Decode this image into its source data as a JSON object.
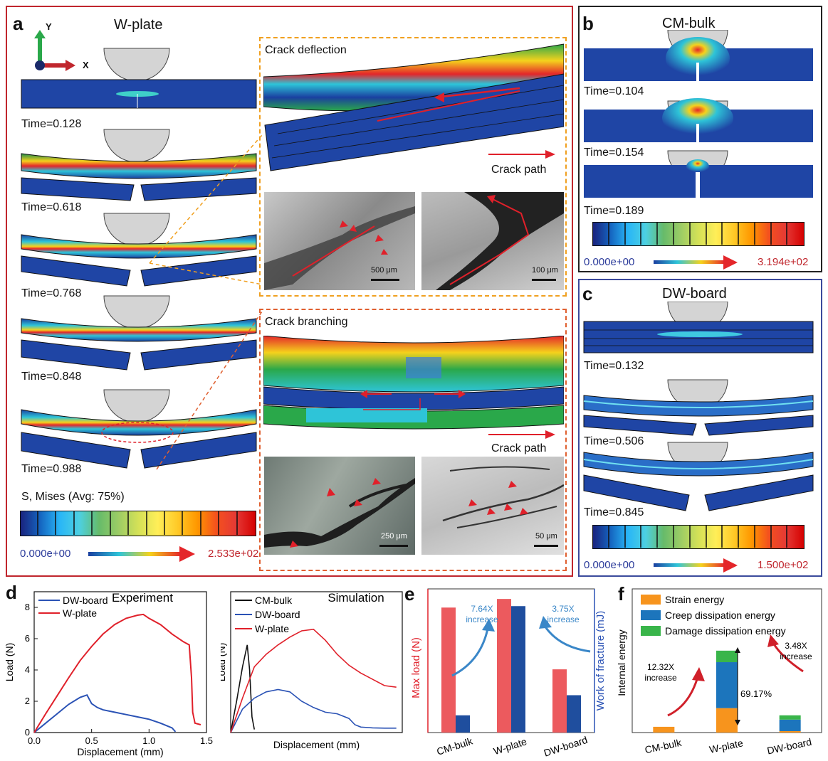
{
  "panel_a": {
    "letter": "a",
    "title": "W-plate",
    "axis_y": "Y",
    "axis_x": "X",
    "times": [
      "Time=0.128",
      "Time=0.618",
      "Time=0.768",
      "Time=0.848",
      "Time=0.988"
    ],
    "legend_title": "S, Mises (Avg: 75%)",
    "scale_min": "0.000e+00",
    "scale_max": "2.533e+02",
    "deflection": {
      "title": "Crack deflection",
      "path_label": "Crack path",
      "scale1": "500 μm",
      "scale2": "100 μm"
    },
    "branching": {
      "title": "Crack branching",
      "path_label": "Crack path",
      "scale1": "250 μm",
      "scale2": "50 μm"
    }
  },
  "panel_b": {
    "letter": "b",
    "title": "CM-bulk",
    "times": [
      "Time=0.104",
      "Time=0.154",
      "Time=0.189"
    ],
    "scale_min": "0.000e+00",
    "scale_max": "3.194e+02"
  },
  "panel_c": {
    "letter": "c",
    "title": "DW-board",
    "times": [
      "Time=0.132",
      "Time=0.506",
      "Time=0.845"
    ],
    "scale_min": "0.000e+00",
    "scale_max": "1.500e+02"
  },
  "colors": {
    "panel_a_border": "#c0262d",
    "panel_b_border": "#222222",
    "panel_c_border": "#3b4a9c",
    "w_plate": "#e0202a",
    "dw_board": "#2a52b5",
    "cm_bulk": "#111111",
    "bar_red": "#ec5a5e",
    "bar_blue": "#1f4e9e",
    "strain": "#f7941d",
    "creep": "#1c75bc",
    "damage": "#39b54a",
    "arrow_blue": "#3a87c8",
    "arrow_red": "#d0202a"
  },
  "panel_d": {
    "letter": "d",
    "experiment_title": "Experiment",
    "simulation_title": "Simulation"
  },
  "panel_e": {
    "letter": "e",
    "ann1_line1": "7.64X",
    "ann1_line2": "increase",
    "ann2_line1": "3.75X",
    "ann2_line2": "increase"
  },
  "panel_f": {
    "letter": "f",
    "ann1_line1": "12.32X",
    "ann1_line2": "increase",
    "ann2_line1": "3.48X",
    "ann2_line2": "increase",
    "pct": "69.17%"
  },
  "chart_data": [
    {
      "id": "d-experiment",
      "type": "line",
      "title": "Experiment",
      "xlabel": "Displacement (mm)",
      "ylabel": "Load (N)",
      "xlim": [
        0,
        1.5
      ],
      "ylim": [
        0,
        9
      ],
      "xticks": [
        "0.0",
        "0.5",
        "1.0",
        "1.5"
      ],
      "yticks": [
        "0",
        "2",
        "4",
        "6",
        "8"
      ],
      "legend_position": "top-left",
      "series": [
        {
          "name": "DW-board",
          "color": "#2a52b5",
          "x": [
            0,
            0.1,
            0.2,
            0.3,
            0.4,
            0.46,
            0.5,
            0.55,
            0.6,
            0.7,
            0.8,
            0.9,
            1.0,
            1.1,
            1.2,
            1.23
          ],
          "y": [
            0,
            0.6,
            1.2,
            1.8,
            2.25,
            2.4,
            1.85,
            1.6,
            1.45,
            1.3,
            1.15,
            1.0,
            0.85,
            0.6,
            0.3,
            0.05
          ]
        },
        {
          "name": "W-plate",
          "color": "#e0202a",
          "x": [
            0,
            0.1,
            0.2,
            0.3,
            0.4,
            0.5,
            0.6,
            0.7,
            0.8,
            0.9,
            0.95,
            1.0,
            1.1,
            1.2,
            1.3,
            1.35,
            1.37,
            1.38,
            1.4,
            1.45
          ],
          "y": [
            0,
            1.2,
            2.35,
            3.5,
            4.6,
            5.5,
            6.3,
            6.9,
            7.3,
            7.5,
            7.55,
            7.3,
            6.9,
            6.3,
            5.8,
            5.6,
            3.5,
            1.3,
            0.6,
            0.5
          ]
        }
      ]
    },
    {
      "id": "d-simulation",
      "type": "line",
      "title": "Simulation",
      "xlabel": "Displacement (mm)",
      "ylabel": "Load (N)",
      "legend_position": "top-left",
      "series": [
        {
          "name": "CM-bulk",
          "color": "#111111",
          "x": [
            0,
            0.05,
            0.1,
            0.14,
            0.16,
            0.18,
            0.2
          ],
          "y": [
            0,
            2.0,
            4.2,
            5.6,
            4.0,
            1.0,
            0.2
          ]
        },
        {
          "name": "DW-board",
          "color": "#2a52b5",
          "x": [
            0,
            0.1,
            0.2,
            0.3,
            0.4,
            0.5,
            0.6,
            0.7,
            0.8,
            0.9,
            1.0,
            1.05,
            1.1,
            1.2,
            1.3,
            1.4
          ],
          "y": [
            0,
            1.5,
            2.2,
            2.6,
            2.75,
            2.6,
            2.0,
            1.6,
            1.3,
            1.2,
            0.9,
            0.5,
            0.35,
            0.3,
            0.28,
            0.28
          ]
        },
        {
          "name": "W-plate",
          "color": "#e0202a",
          "x": [
            0,
            0.1,
            0.2,
            0.3,
            0.4,
            0.5,
            0.6,
            0.7,
            0.8,
            0.9,
            1.0,
            1.1,
            1.2,
            1.3,
            1.4
          ],
          "y": [
            0,
            2.2,
            4.2,
            5.0,
            5.6,
            6.1,
            6.5,
            6.6,
            5.9,
            5.0,
            4.3,
            3.8,
            3.4,
            3.0,
            2.9
          ]
        }
      ]
    },
    {
      "id": "e",
      "type": "bar",
      "categories": [
        "CM-bulk",
        "W-plate",
        "DW-board"
      ],
      "ylabel": "Max load (N)",
      "y2label": "Work of fracture (mJ)",
      "series": [
        {
          "name": "Max load (N)",
          "color": "#ec5a5e",
          "values": [
            0.87,
            0.93,
            0.44
          ]
        },
        {
          "name": "Work of fracture (mJ)",
          "color": "#1f4e9e",
          "values": [
            0.12,
            0.88,
            0.26
          ]
        }
      ]
    },
    {
      "id": "f",
      "type": "bar",
      "stacked": true,
      "categories": [
        "CM-bulk",
        "W-plate",
        "DW-board"
      ],
      "ylabel": "Internal energy",
      "legend_position": "top",
      "series": [
        {
          "name": "Strain energy",
          "color": "#f7941d",
          "values": [
            0.04,
            0.17,
            0.01
          ]
        },
        {
          "name": "Creep dissipation energy",
          "color": "#1c75bc",
          "values": [
            0.0,
            0.32,
            0.08
          ]
        },
        {
          "name": "Damage dissipation energy",
          "color": "#39b54a",
          "values": [
            0.0,
            0.08,
            0.03
          ]
        }
      ]
    }
  ]
}
